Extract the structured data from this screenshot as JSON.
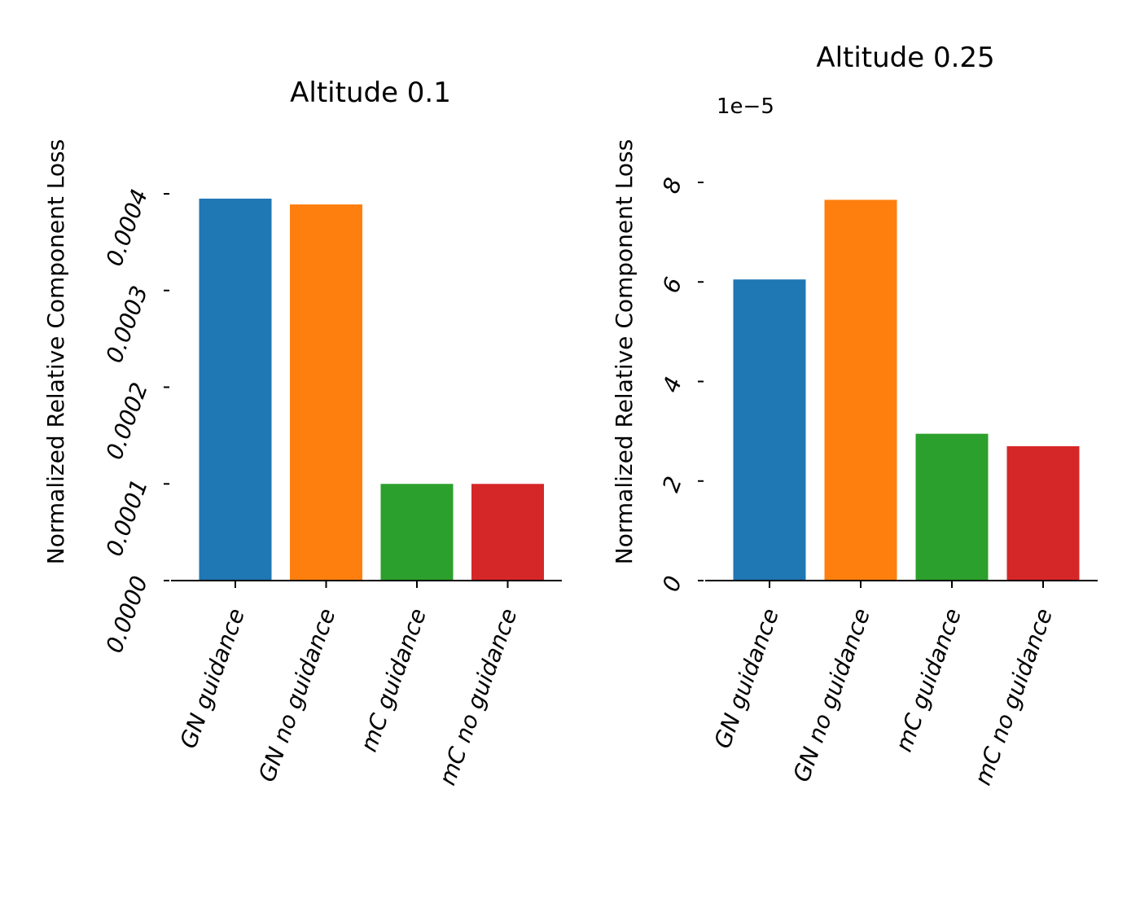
{
  "chart_data": [
    {
      "type": "bar",
      "title": "Altitude 0.1",
      "ylabel": "Normalized Relative Component Loss",
      "xlabel": "",
      "categories": [
        "GN guidance",
        "GN no guidance",
        "mC guidance",
        "mC no guidance"
      ],
      "values": [
        0.000395,
        0.000389,
        0.0001,
        0.0001
      ],
      "colors": [
        "#1f77b4",
        "#ff7f0e",
        "#2ca02c",
        "#d62728"
      ],
      "ylim": [
        0,
        0.0004
      ],
      "yticks": [
        0,
        0.0001,
        0.0002,
        0.0003,
        0.0004
      ],
      "ytick_labels": [
        "0.0000",
        "0.0001",
        "0.0002",
        "0.0003",
        "0.0004"
      ],
      "offset_label": "",
      "grid": false,
      "legend": "none"
    },
    {
      "type": "bar",
      "title": "Altitude 0.25",
      "ylabel": "Normalized Relative Component Loss",
      "xlabel": "",
      "categories": [
        "GN guidance",
        "GN no guidance",
        "mC guidance",
        "mC no guidance"
      ],
      "values": [
        6.05,
        7.65,
        2.95,
        2.7
      ],
      "colors": [
        "#1f77b4",
        "#ff7f0e",
        "#2ca02c",
        "#d62728"
      ],
      "ylim": [
        0,
        8
      ],
      "yticks": [
        0,
        2,
        4,
        6,
        8
      ],
      "ytick_labels": [
        "0",
        "2",
        "4",
        "6",
        "8"
      ],
      "offset_label": "1e−5",
      "grid": false,
      "legend": "none"
    }
  ]
}
